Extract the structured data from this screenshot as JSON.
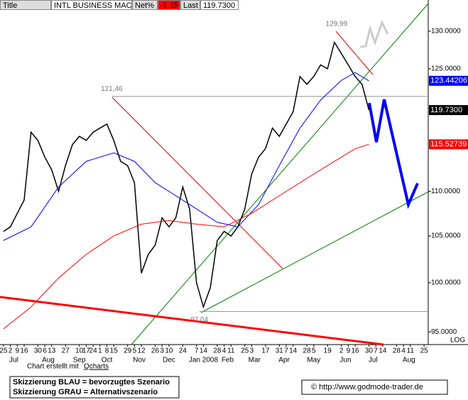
{
  "header": {
    "title_label": "Title",
    "symbol": "INTL BUSINESS MACH",
    "net_label": "Net%",
    "net_value": "-1.15",
    "last_label": "Last",
    "last_value": "119.7300"
  },
  "chart_data": {
    "type": "line",
    "log_scale": true,
    "log_label": "LOG",
    "xlim": [
      -0.5,
      61.6
    ],
    "ylim": [
      93.75,
      134.3
    ],
    "yticks": [
      {
        "value": 95,
        "label": "95.0000"
      },
      {
        "value": 100,
        "label": "100.0000"
      },
      {
        "value": 105,
        "label": "105.0000"
      },
      {
        "value": 110,
        "label": "110.0000"
      },
      {
        "value": 125,
        "label": "125.0000"
      },
      {
        "value": 130,
        "label": "130.0000"
      }
    ],
    "xticks": [
      {
        "value": 0,
        "label": "25"
      },
      {
        "value": 1,
        "label": "2"
      },
      {
        "value": 2,
        "label": "9"
      },
      {
        "value": 3,
        "label": "16"
      },
      {
        "value": 5,
        "label": "30"
      },
      {
        "value": 6,
        "label": "6"
      },
      {
        "value": 7,
        "label": "13"
      },
      {
        "value": 9,
        "label": "27"
      },
      {
        "value": 11,
        "label": "10"
      },
      {
        "value": 12,
        "label": "17"
      },
      {
        "value": 13,
        "label": "24"
      },
      {
        "value": 14,
        "label": "1"
      },
      {
        "value": 15,
        "label": "8"
      },
      {
        "value": 16,
        "label": "15"
      },
      {
        "value": 18,
        "label": "29"
      },
      {
        "value": 19,
        "label": "5"
      },
      {
        "value": 20,
        "label": "12"
      },
      {
        "value": 22,
        "label": "26"
      },
      {
        "value": 23,
        "label": "3"
      },
      {
        "value": 24,
        "label": "10"
      },
      {
        "value": 26,
        "label": "24"
      },
      {
        "value": 28,
        "label": "7"
      },
      {
        "value": 29,
        "label": "14"
      },
      {
        "value": 31,
        "label": "28"
      },
      {
        "value": 32,
        "label": "4"
      },
      {
        "value": 33,
        "label": "11"
      },
      {
        "value": 35,
        "label": "25"
      },
      {
        "value": 36,
        "label": "3"
      },
      {
        "value": 38,
        "label": "17"
      },
      {
        "value": 40,
        "label": "31"
      },
      {
        "value": 41,
        "label": "7"
      },
      {
        "value": 42,
        "label": "14"
      },
      {
        "value": 44,
        "label": "28"
      },
      {
        "value": 45,
        "label": "5"
      },
      {
        "value": 47,
        "label": "19"
      },
      {
        "value": 49,
        "label": "2"
      },
      {
        "value": 50,
        "label": "9"
      },
      {
        "value": 51,
        "label": "16"
      },
      {
        "value": 53,
        "label": "30"
      },
      {
        "value": 54,
        "label": "7"
      },
      {
        "value": 55,
        "label": "14"
      },
      {
        "value": 57,
        "label": "28"
      },
      {
        "value": 58,
        "label": "4"
      },
      {
        "value": 59,
        "label": "11"
      },
      {
        "value": 61,
        "label": "25"
      }
    ],
    "month_ticks": [
      {
        "value": 1.5,
        "label": "Jul"
      },
      {
        "value": 6.5,
        "label": "Aug"
      },
      {
        "value": 11,
        "label": "Sep"
      },
      {
        "value": 15,
        "label": "Oct"
      },
      {
        "value": 19.7,
        "label": "Nov"
      },
      {
        "value": 24,
        "label": "Dec"
      },
      {
        "value": 29,
        "label": "Jan 2008"
      },
      {
        "value": 32.5,
        "label": "Feb"
      },
      {
        "value": 36.4,
        "label": "Mar"
      },
      {
        "value": 40.7,
        "label": "Apr"
      },
      {
        "value": 45,
        "label": "May"
      },
      {
        "value": 49.6,
        "label": "Jun"
      },
      {
        "value": 53.6,
        "label": "Jul"
      },
      {
        "value": 58.8,
        "label": "Aug"
      }
    ],
    "series": [
      {
        "name": "price",
        "color": "#000000",
        "x": [
          0,
          1,
          2,
          3,
          4,
          5,
          6,
          7,
          8,
          9,
          10,
          11,
          12,
          13,
          14,
          15,
          16,
          17,
          18,
          19,
          20,
          21,
          22,
          23,
          24,
          25,
          26,
          27,
          28,
          29,
          30,
          31,
          32,
          33,
          34,
          35,
          36,
          37,
          38,
          39,
          40,
          41,
          42,
          43,
          44,
          45,
          46,
          47,
          48,
          49,
          50,
          51,
          52,
          53
        ],
        "values": [
          105.5,
          106,
          107.5,
          109,
          117,
          116,
          114,
          112.5,
          110,
          113,
          115.5,
          116.5,
          116,
          117,
          117.5,
          118,
          116,
          113.5,
          113,
          111,
          101,
          103,
          104,
          107,
          106,
          107,
          110.5,
          108,
          100,
          97.5,
          99.5,
          104.5,
          105.5,
          105,
          106,
          108,
          112,
          114,
          115,
          117.5,
          116.5,
          118,
          119.5,
          124,
          123,
          124,
          125.5,
          125,
          128.5,
          127,
          125.5,
          124,
          123,
          119.73
        ],
        "value_labels": [
          null,
          null,
          null,
          null,
          null,
          null,
          null,
          null,
          null,
          null,
          null,
          null,
          null,
          null,
          null,
          null,
          null,
          null,
          null,
          null,
          null,
          null,
          null,
          null,
          null,
          null,
          null,
          null,
          null,
          null,
          null,
          null,
          null,
          null,
          null,
          null,
          null,
          null,
          null,
          null,
          null,
          null,
          null,
          null,
          null,
          null,
          null,
          null,
          null,
          null,
          null,
          null,
          null,
          "119.7300"
        ]
      },
      {
        "name": "ma-blue",
        "color": "#0000ff",
        "x": [
          0,
          4,
          8,
          12,
          16,
          19,
          22,
          25,
          28,
          31,
          34,
          37,
          40,
          43,
          46,
          49,
          51,
          53
        ],
        "values": [
          104.5,
          106,
          110.5,
          113.5,
          114.5,
          113.5,
          111,
          109.5,
          108,
          106.5,
          106,
          108.5,
          113,
          117.5,
          121,
          123.5,
          124.5,
          123.44206
        ]
      },
      {
        "name": "ma-red",
        "color": "#ff0000",
        "x": [
          0,
          4,
          8,
          12,
          16,
          20,
          24,
          28,
          32,
          36,
          40,
          44,
          48,
          51,
          53
        ],
        "values": [
          95.3,
          97.5,
          100.5,
          103,
          105,
          106.3,
          106.7,
          106.3,
          106,
          107.5,
          109.5,
          111.5,
          113.5,
          115,
          115.52739
        ]
      }
    ],
    "annotations": [
      {
        "label": "121,46",
        "value": 121.46,
        "x": 15.7,
        "line": true
      },
      {
        "label": "129,99",
        "value": 129.99,
        "x": 48.3,
        "line": false
      },
      {
        "label": "97,04",
        "value": 97.04,
        "x": 28.4,
        "line": true
      }
    ]
  },
  "footer": {
    "credit": "Chart erstellt mit",
    "credit_link": "Qcharts",
    "legend_blue": "Skizzierung BLAU = bevorzugtes Szenario",
    "legend_gray": "Skizzierung GRAU = Alternativszenario",
    "copyright": "© http://www.godmode-trader.de"
  }
}
